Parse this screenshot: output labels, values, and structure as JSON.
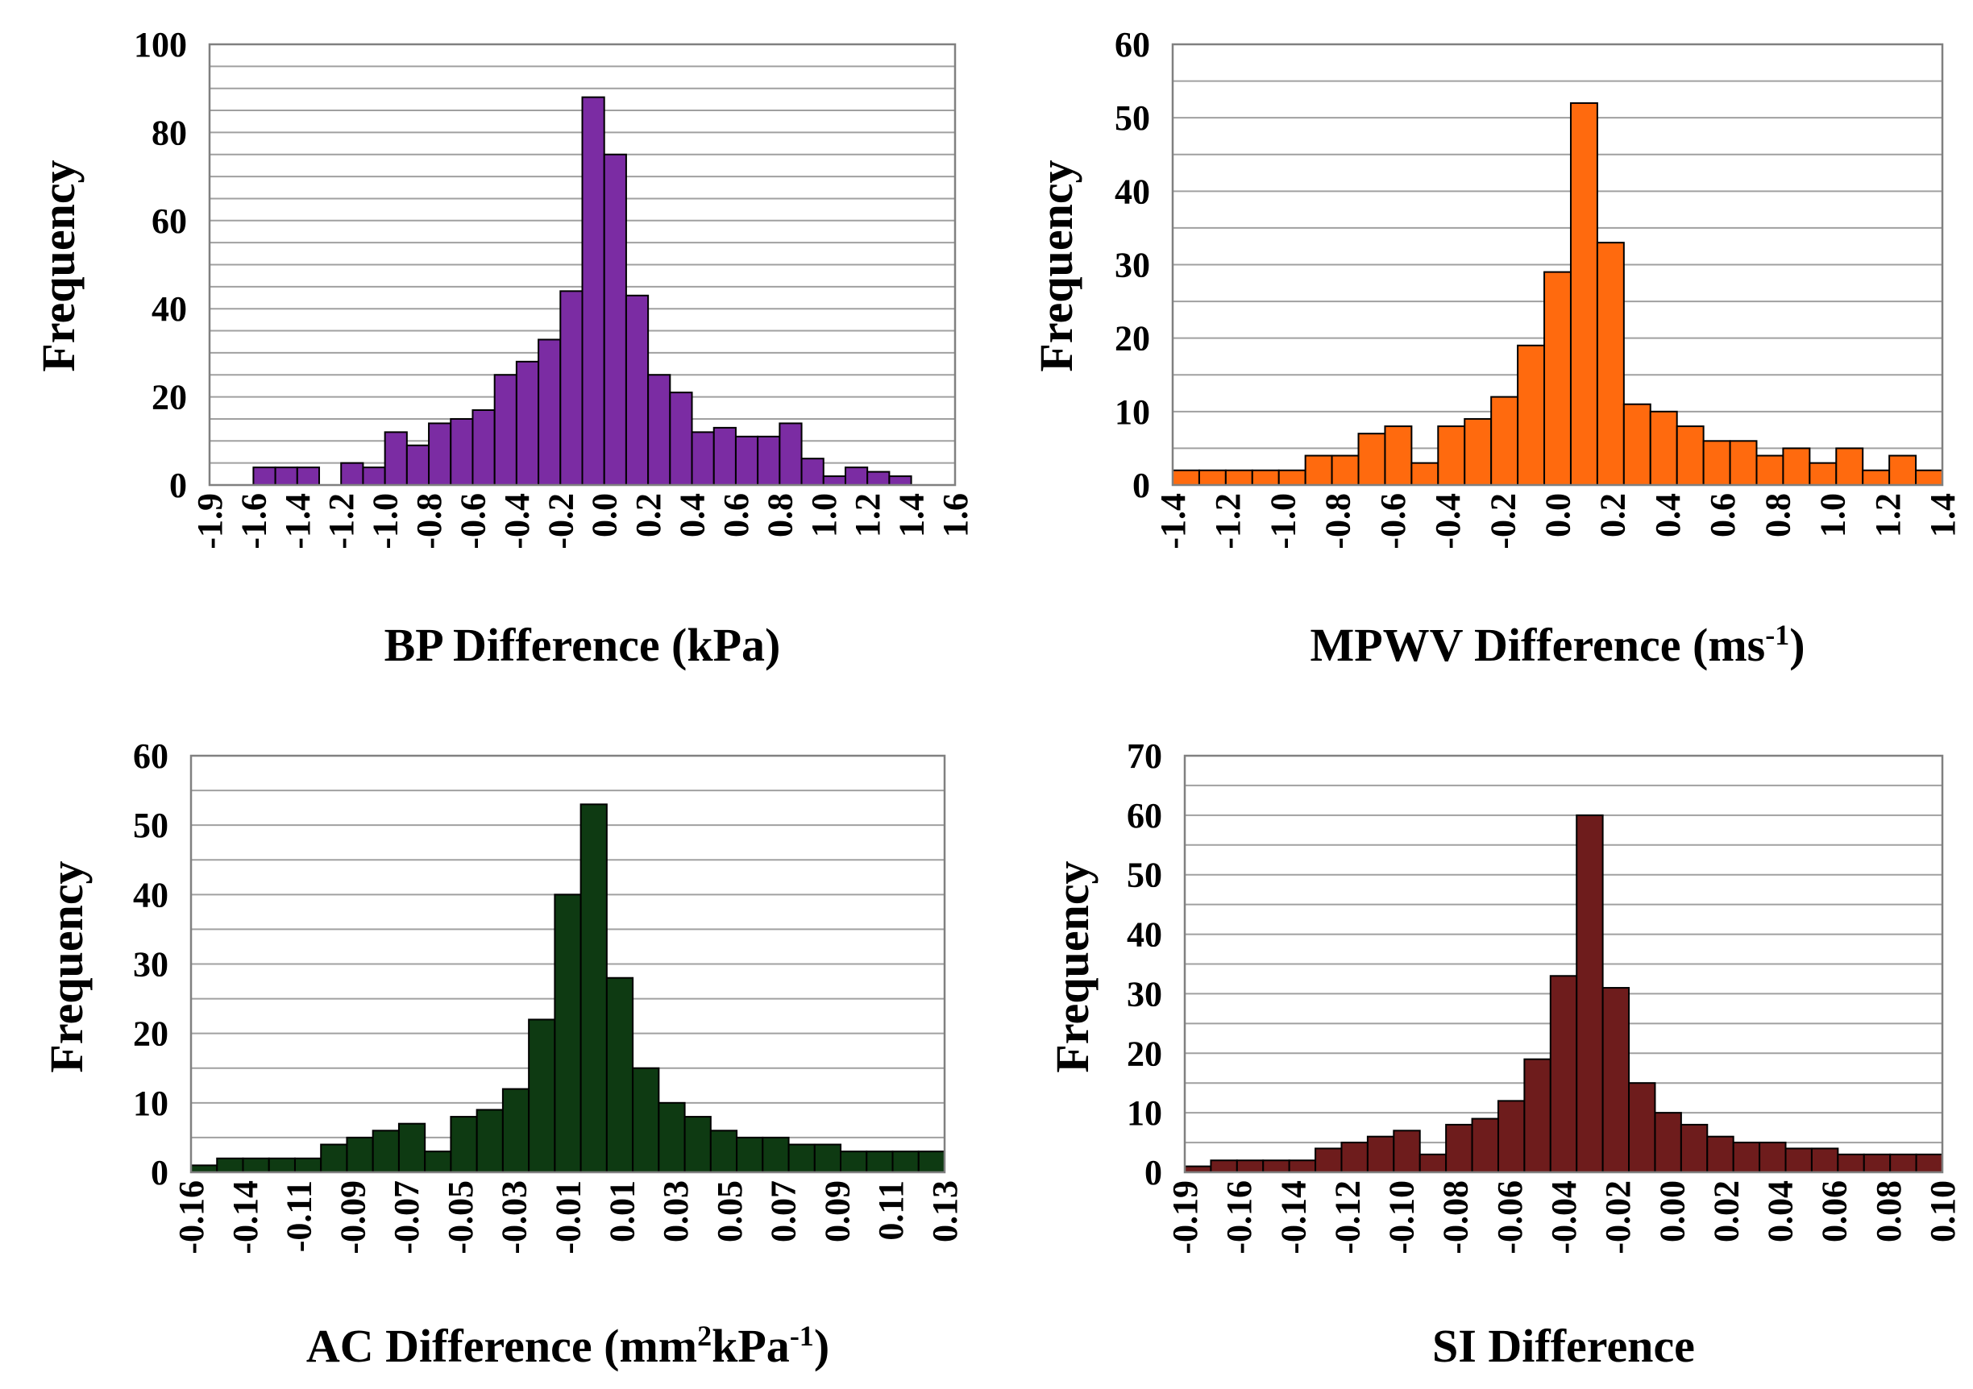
{
  "chart_data": [
    {
      "id": "bp",
      "type": "bar",
      "title": "",
      "xlabel": "BP Difference (kPa)",
      "xlabel_super": "",
      "ylabel": "Frequency",
      "ylim": [
        0,
        100
      ],
      "yticks": [
        "0",
        "20",
        "40",
        "60",
        "80",
        "100"
      ],
      "ytick_values": [
        0,
        20,
        40,
        60,
        80,
        100
      ],
      "gridlines": 20,
      "color": "#7B2CA3",
      "xtick_labels": [
        "-1.9",
        "-1.6",
        "-1.4",
        "-1.2",
        "-1.0",
        "-0.8",
        "-0.6",
        "-0.4",
        "-0.2",
        "0.0",
        "0.2",
        "0.4",
        "0.6",
        "0.8",
        "1.0",
        "1.2",
        "1.4",
        "1.6"
      ],
      "values": [
        0,
        0,
        4,
        4,
        4,
        0,
        5,
        4,
        12,
        9,
        14,
        15,
        17,
        25,
        28,
        33,
        44,
        88,
        75,
        43,
        25,
        21,
        12,
        13,
        11,
        11,
        14,
        6,
        2,
        4,
        3,
        2,
        0,
        0
      ]
    },
    {
      "id": "mpwv",
      "type": "bar",
      "title": "",
      "xlabel": "MPWV Difference (ms",
      "xlabel_super": "-1",
      "xlabel_tail": ")",
      "ylabel": "Frequency",
      "ylim": [
        0,
        60
      ],
      "yticks": [
        "0",
        "10",
        "20",
        "30",
        "40",
        "50",
        "60"
      ],
      "ytick_values": [
        0,
        10,
        20,
        30,
        40,
        50,
        60
      ],
      "gridlines": 12,
      "color": "#FF6A0E",
      "xtick_labels": [
        "-1.4",
        "-1.2",
        "-1.0",
        "-0.8",
        "-0.6",
        "-0.4",
        "-0.2",
        "0.0",
        "0.2",
        "0.4",
        "0.6",
        "0.8",
        "1.0",
        "1.2",
        "1.4"
      ],
      "values": [
        2,
        2,
        2,
        2,
        2,
        4,
        4,
        7,
        8,
        3,
        8,
        9,
        12,
        19,
        29,
        52,
        33,
        11,
        10,
        8,
        6,
        6,
        4,
        5,
        3,
        5,
        2,
        4,
        2
      ]
    },
    {
      "id": "ac",
      "type": "bar",
      "title": "",
      "xlabel": "AC Difference (mm",
      "xlabel_super": "2",
      "xlabel_mid": "kPa",
      "xlabel_super2": "-1",
      "xlabel_tail": ")",
      "ylabel": "Frequency",
      "ylim": [
        0,
        60
      ],
      "yticks": [
        "0",
        "10",
        "20",
        "30",
        "40",
        "50",
        "60"
      ],
      "ytick_values": [
        0,
        10,
        20,
        30,
        40,
        50,
        60
      ],
      "gridlines": 12,
      "color": "#0E3A12",
      "xtick_labels": [
        "-0.16",
        "-0.14",
        "-0.11",
        "-0.09",
        "-0.07",
        "-0.05",
        "-0.03",
        "-0.01",
        "0.01",
        "0.03",
        "0.05",
        "0.07",
        "0.09",
        "0.11",
        "0.13"
      ],
      "values": [
        1,
        2,
        2,
        2,
        2,
        4,
        5,
        6,
        7,
        3,
        8,
        9,
        12,
        22,
        40,
        53,
        28,
        15,
        10,
        8,
        6,
        5,
        5,
        4,
        4,
        3,
        3,
        3,
        3
      ]
    },
    {
      "id": "si",
      "type": "bar",
      "title": "",
      "xlabel": "SI Difference",
      "xlabel_super": "",
      "ylabel": "Frequency",
      "ylim": [
        0,
        70
      ],
      "yticks": [
        "0",
        "10",
        "20",
        "30",
        "40",
        "50",
        "60",
        "70"
      ],
      "ytick_values": [
        0,
        10,
        20,
        30,
        40,
        50,
        60,
        70
      ],
      "gridlines": 14,
      "color": "#6E1C1C",
      "xtick_labels": [
        "-0.19",
        "-0.16",
        "-0.14",
        "-0.12",
        "-0.10",
        "-0.08",
        "-0.06",
        "-0.04",
        "-0.02",
        "0.00",
        "0.02",
        "0.04",
        "0.06",
        "0.08",
        "0.10"
      ],
      "values": [
        1,
        2,
        2,
        2,
        2,
        4,
        5,
        6,
        7,
        3,
        8,
        9,
        12,
        19,
        33,
        60,
        31,
        15,
        10,
        8,
        6,
        5,
        5,
        4,
        4,
        3,
        3,
        3,
        3
      ]
    }
  ]
}
